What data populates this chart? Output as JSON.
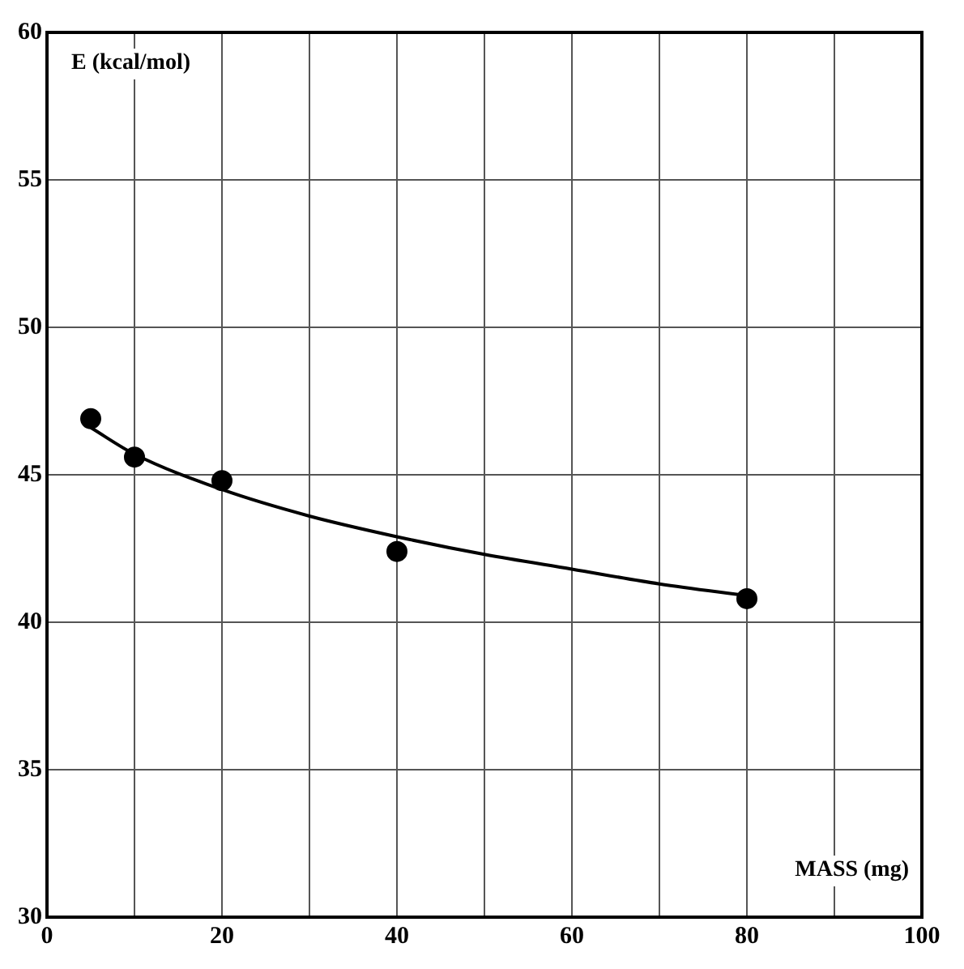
{
  "chart_data": {
    "type": "scatter",
    "xlabel": "MASS (mg)",
    "ylabel": "E (kcal/mol)",
    "series": [
      {
        "type": "scatter",
        "color": "#000000",
        "x": [
          5,
          10,
          20,
          40,
          80
        ],
        "values": [
          46.9,
          45.6,
          44.8,
          42.4,
          40.8
        ],
        "marker": "circle"
      },
      {
        "type": "line",
        "color": "#000000",
        "x": [
          5,
          10,
          20,
          30,
          40,
          50,
          60,
          70,
          80
        ],
        "values": [
          46.6,
          45.7,
          44.5,
          43.6,
          42.9,
          42.3,
          41.8,
          41.3,
          40.9
        ],
        "marker": "none"
      }
    ],
    "xlim": [
      0,
      100
    ],
    "ylim": [
      30,
      60
    ],
    "xticks": [
      0,
      {
        "value": 10,
        "label": null
      },
      20,
      {
        "value": 30,
        "label": null
      },
      40,
      {
        "value": 50,
        "label": null
      },
      60,
      {
        "value": 70,
        "label": null
      },
      80,
      {
        "value": 90,
        "label": null
      },
      100
    ],
    "yticks": [
      30,
      35,
      40,
      45,
      50,
      55,
      60
    ],
    "grid": true,
    "legend": false
  }
}
